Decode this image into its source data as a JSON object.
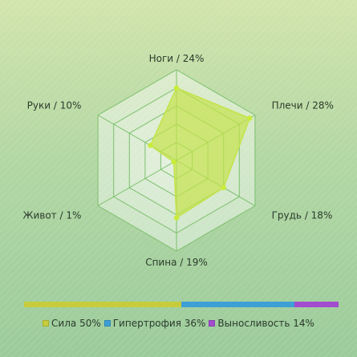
{
  "chart_data": {
    "type": "radar",
    "axes": [
      {
        "label": "Ноги / 24%",
        "value": 24
      },
      {
        "label": "Плечи / 28%",
        "value": 28
      },
      {
        "label": "Грудь / 18%",
        "value": 18
      },
      {
        "label": "Спина / 19%",
        "value": 19
      },
      {
        "label": "Живот / 1%",
        "value": 1
      },
      {
        "label": "Руки / 10%",
        "value": 10
      }
    ],
    "rlim": [
      0,
      30
    ],
    "grid_levels": 5,
    "grid": true,
    "series_color": "#c4e34a",
    "distribution": [
      {
        "label": "Сила 50%",
        "value": 50,
        "color": "#c6cc3c"
      },
      {
        "label": "Гипертрофия 36%",
        "value": 36,
        "color": "#3d9fd6"
      },
      {
        "label": "Выносливость 14%",
        "value": 14,
        "color": "#a24cd0"
      }
    ],
    "legend_position": "bottom"
  }
}
